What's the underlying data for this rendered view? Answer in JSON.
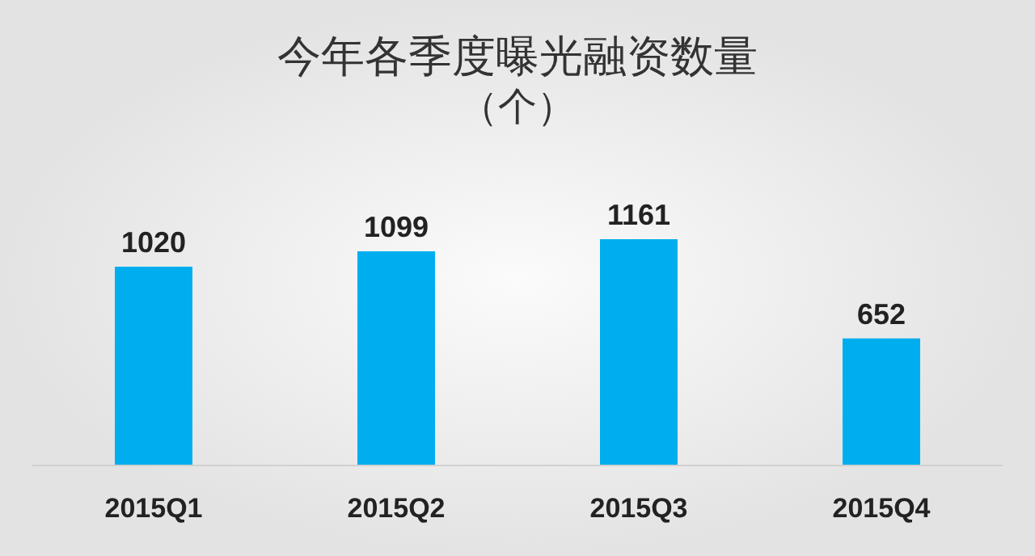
{
  "chart_data": {
    "type": "bar",
    "title": "今年各季度曝光融资数量",
    "subtitle": "（个）",
    "categories": [
      "2015Q1",
      "2015Q2",
      "2015Q3",
      "2015Q4"
    ],
    "values": [
      1020,
      1099,
      1161,
      652
    ],
    "color": "#00aeef",
    "data_labels": true
  }
}
